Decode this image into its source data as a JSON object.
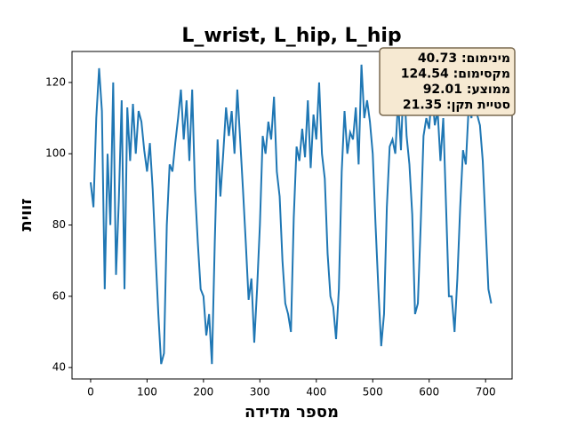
{
  "chart_data": {
    "type": "line",
    "title": "L_wrist, L_hip, L_hip",
    "x_label": "מספר מדידה",
    "y_label": "זווית",
    "annotations": [
      "מינימום: 40.73",
      "מקסימום: 124.54",
      "ממוצע: 92.01",
      "סטיית תקן: 21.35"
    ],
    "xlim": [
      -33,
      747
    ],
    "ylim": [
      36.8,
      128.7
    ],
    "xticks": [
      0,
      100,
      200,
      300,
      400,
      500,
      600,
      700
    ],
    "yticks": [
      40,
      60,
      80,
      100,
      120
    ],
    "grid": false,
    "series": [
      {
        "color": "#1f77b4",
        "x": [
          0,
          5,
          10,
          15,
          20,
          25,
          30,
          35,
          40,
          45,
          50,
          55,
          60,
          65,
          70,
          75,
          80,
          85,
          90,
          95,
          100,
          105,
          110,
          115,
          120,
          125,
          130,
          135,
          140,
          145,
          150,
          155,
          160,
          165,
          170,
          175,
          180,
          185,
          190,
          195,
          200,
          205,
          210,
          215,
          220,
          225,
          230,
          235,
          240,
          245,
          250,
          255,
          260,
          265,
          270,
          275,
          280,
          285,
          290,
          295,
          300,
          305,
          310,
          315,
          320,
          325,
          330,
          335,
          340,
          345,
          350,
          355,
          360,
          365,
          370,
          375,
          380,
          385,
          390,
          395,
          400,
          405,
          410,
          415,
          420,
          425,
          430,
          435,
          440,
          445,
          450,
          455,
          460,
          465,
          470,
          475,
          480,
          485,
          490,
          495,
          500,
          505,
          510,
          515,
          520,
          525,
          530,
          535,
          540,
          545,
          550,
          555,
          560,
          565,
          570,
          575,
          580,
          585,
          590,
          595,
          600,
          605,
          610,
          615,
          620,
          625,
          630,
          635,
          640,
          645,
          650,
          655,
          660,
          665,
          670,
          675,
          680,
          685,
          690,
          695,
          700,
          705,
          710
        ],
        "values": [
          92,
          85,
          110,
          124,
          112,
          62,
          100,
          80,
          120,
          66,
          87,
          115,
          62,
          113,
          98,
          114,
          100,
          112,
          109,
          101,
          95,
          103,
          90,
          72,
          55,
          41,
          44,
          80,
          97,
          95,
          103,
          110,
          118,
          104,
          115,
          98,
          118,
          90,
          75,
          62,
          60,
          49,
          55,
          41,
          75,
          104,
          88,
          100,
          113,
          105,
          112,
          100,
          118,
          104,
          90,
          75,
          59,
          65,
          47,
          62,
          80,
          105,
          100,
          109,
          104,
          116,
          95,
          88,
          70,
          58,
          55,
          50,
          82,
          102,
          98,
          107,
          99,
          115,
          96,
          111,
          104,
          120,
          100,
          93,
          72,
          60,
          57,
          48,
          62,
          95,
          112,
          100,
          106,
          104,
          113,
          97,
          125,
          110,
          115,
          109,
          100,
          80,
          62,
          46,
          55,
          85,
          102,
          104,
          100,
          115,
          101,
          122,
          105,
          97,
          83,
          55,
          58,
          80,
          105,
          110,
          107,
          118,
          108,
          112,
          98,
          110,
          85,
          60,
          60,
          50,
          65,
          85,
          101,
          97,
          113,
          110,
          122,
          111,
          108,
          98,
          80,
          62,
          58
        ]
      }
    ]
  }
}
